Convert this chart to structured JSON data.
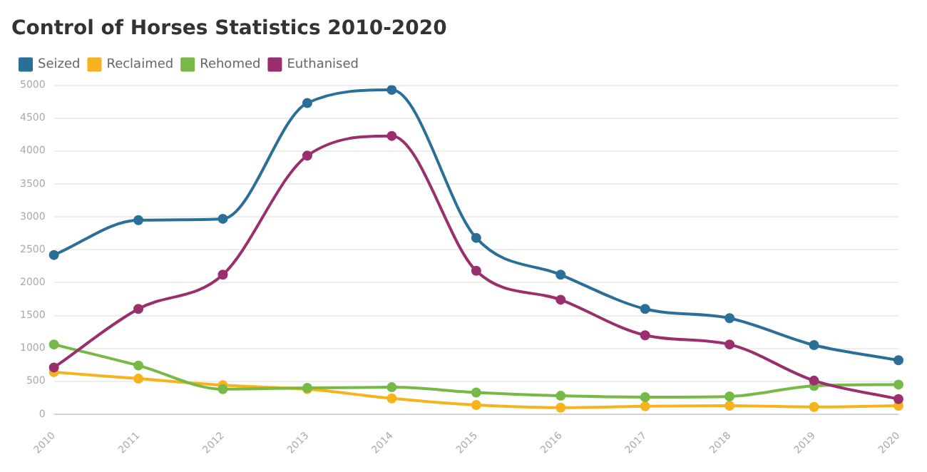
{
  "chart_data": {
    "type": "line",
    "title": "Control of Horses Statistics 2010-2020",
    "categories": [
      "2010",
      "2011",
      "2012",
      "2013",
      "2014",
      "2015",
      "2016",
      "2017",
      "2018",
      "2019",
      "2020"
    ],
    "series": [
      {
        "name": "Seized",
        "color": "#2a6f97",
        "values": [
          2420,
          2950,
          2970,
          4730,
          4930,
          2680,
          2120,
          1600,
          1460,
          1050,
          820
        ]
      },
      {
        "name": "Reclaimed",
        "color": "#f7b31c",
        "values": [
          640,
          540,
          440,
          380,
          240,
          140,
          100,
          120,
          130,
          110,
          130
        ]
      },
      {
        "name": "Rehomed",
        "color": "#76b947",
        "values": [
          1060,
          740,
          380,
          400,
          410,
          330,
          280,
          260,
          270,
          430,
          450
        ]
      },
      {
        "name": "Euthanised",
        "color": "#9b2f6e",
        "values": [
          710,
          1600,
          2120,
          3930,
          4230,
          2180,
          1740,
          1200,
          1060,
          510,
          230
        ]
      }
    ],
    "ylim": [
      0,
      5000
    ],
    "yticks": [
      0,
      500,
      1000,
      1500,
      2000,
      2500,
      3000,
      3500,
      4000,
      4500,
      5000
    ],
    "grid": "y",
    "legend": "top left",
    "marker": "circle",
    "line_style": "solid"
  }
}
